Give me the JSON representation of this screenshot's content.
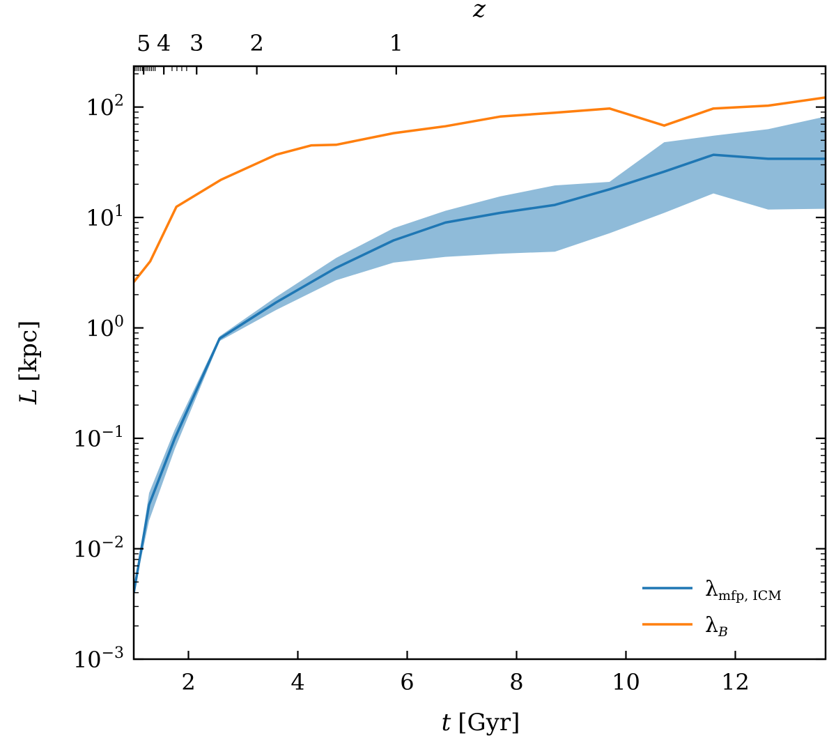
{
  "chart_data": {
    "type": "line",
    "xlabel_var": "t",
    "xlabel_unit": "[Gyr]",
    "ylabel_var": "L",
    "ylabel_unit": "[kpc]",
    "top_axis_label": "z",
    "xlim": [
      1.0,
      13.65
    ],
    "ylim_log10": [
      -3,
      2.37
    ],
    "yscale": "log",
    "x_ticks": [
      2,
      4,
      6,
      8,
      10,
      12
    ],
    "x_tick_labels": [
      "2",
      "4",
      "6",
      "8",
      "10",
      "12"
    ],
    "y_tick_base": "10",
    "y_ticks_exponent": [
      -3,
      -2,
      -1,
      0,
      1,
      2
    ],
    "y_tick_exponent_labels": [
      "−3",
      "−2",
      "−1",
      "0",
      "1",
      "2"
    ],
    "top_ticks": [
      {
        "label": "5",
        "t": 1.18
      },
      {
        "label": "4",
        "t": 1.55
      },
      {
        "label": "3",
        "t": 2.15
      },
      {
        "label": "2",
        "t": 3.25
      },
      {
        "label": "1",
        "t": 5.8
      }
    ],
    "series": [
      {
        "name": "λmfp, ICM",
        "legend_symbol": "λ",
        "legend_sub": "mfp, ICM",
        "color": "#1f77b4",
        "x": [
          1.0,
          1.28,
          1.75,
          2.57,
          3.6,
          4.7,
          5.75,
          6.7,
          7.7,
          8.7,
          9.7,
          10.7,
          11.6,
          12.6,
          13.65
        ],
        "y": [
          0.004,
          0.025,
          0.1,
          0.8,
          1.7,
          3.5,
          6.2,
          9.0,
          11.0,
          13.0,
          18.0,
          26.0,
          37.0,
          34.0,
          34.0
        ],
        "band_lower": [
          0.004,
          0.018,
          0.08,
          0.76,
          1.45,
          2.7,
          3.9,
          4.4,
          4.7,
          4.9,
          7.2,
          11.0,
          16.5,
          11.8,
          12.0
        ],
        "band_upper": [
          0.004,
          0.032,
          0.12,
          0.84,
          1.9,
          4.3,
          8.0,
          11.5,
          15.5,
          19.5,
          21.0,
          48.0,
          55.0,
          63.0,
          82.0
        ]
      },
      {
        "name": "λB",
        "legend_symbol": "λ",
        "legend_sub": "B",
        "color": "#ff7f0e",
        "x": [
          1.0,
          1.3,
          1.78,
          2.6,
          3.6,
          4.25,
          4.7,
          5.75,
          6.7,
          7.7,
          8.7,
          9.7,
          10.7,
          11.6,
          12.6,
          13.65
        ],
        "y": [
          2.6,
          4.0,
          12.5,
          22.0,
          37.0,
          45.0,
          45.5,
          58.0,
          67.0,
          82.0,
          89.0,
          97.0,
          68.0,
          97.0,
          103.0,
          122.0
        ]
      }
    ],
    "legend_position": "lower-right"
  }
}
